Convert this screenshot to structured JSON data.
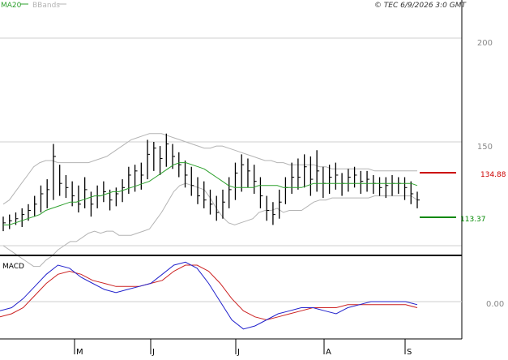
{
  "legend": {
    "ma_label": "MA20",
    "bbands_label": "BBands",
    "ma_color": "#2ca02c",
    "bbands_color": "#b4b4b4"
  },
  "copyright": "© TEC 6/9/2026 3:0 GMT",
  "price_axis": {
    "tick_labels": [
      "200",
      "150"
    ],
    "tick_values": [
      200,
      150
    ]
  },
  "levels": {
    "resistance": {
      "label": "134.88",
      "value": 134.88,
      "color": "#cc0000"
    },
    "support": {
      "label": "113.37",
      "value": 113.37,
      "color": "#008800"
    }
  },
  "macd": {
    "label": "MACD",
    "zero_label": "0.00",
    "macd_color": "#2222cc",
    "signal_color": "#cc2222"
  },
  "x_axis": {
    "months": [
      "M",
      "J",
      "J",
      "A",
      "S"
    ]
  },
  "chart_data": {
    "type": "line",
    "title": "",
    "ylim": [
      95,
      215
    ],
    "grid": true,
    "legend_placement": "top-left",
    "series": [
      {
        "name": "MA20",
        "values": [
          110,
          110,
          111,
          112,
          113,
          114,
          115,
          117,
          118,
          119,
          120,
          121,
          121,
          122,
          123,
          124,
          124,
          125,
          126,
          126,
          127,
          128,
          129,
          130,
          131,
          133,
          135,
          137,
          139,
          140,
          140,
          139,
          138,
          137,
          135,
          133,
          131,
          129,
          128,
          128,
          128,
          128,
          129,
          129,
          129,
          129,
          128,
          128,
          128,
          128,
          129,
          130,
          130,
          130,
          130,
          130,
          130,
          130,
          130,
          130,
          130,
          130,
          130,
          130,
          130,
          130,
          130,
          130,
          129
        ]
      },
      {
        "name": "BBands",
        "values": [
          120,
          122,
          126,
          130,
          134,
          138,
          140,
          141,
          141,
          140,
          140,
          140,
          140,
          140,
          140,
          141,
          142,
          143,
          145,
          147,
          149,
          151,
          152,
          153,
          154,
          154,
          154,
          153,
          152,
          151,
          150,
          149,
          148,
          147,
          147,
          148,
          148,
          147,
          146,
          145,
          144,
          143,
          142,
          141,
          141,
          140,
          140,
          139,
          139,
          139,
          139,
          139,
          138,
          138,
          137,
          137,
          137,
          137,
          137,
          137,
          137,
          136,
          136,
          136,
          136,
          136,
          136,
          136,
          136
        ]
      },
      {
        "name": "MACD",
        "values": [
          -1.5,
          -1.0,
          0.5,
          2.5,
          4.5,
          6.0,
          5.5,
          4.0,
          3.0,
          2.0,
          1.5,
          2.0,
          2.5,
          3.0,
          4.5,
          6.0,
          6.5,
          5.5,
          3.0,
          0.0,
          -3.0,
          -4.5,
          -4.0,
          -3.0,
          -2.0,
          -1.5,
          -1.0,
          -1.0,
          -1.5,
          -2.0,
          -1.0,
          -0.5,
          0.0,
          0.0,
          0.0,
          0.0,
          -0.5
        ]
      },
      {
        "name": "Signal",
        "values": [
          -2.5,
          -2.0,
          -1.0,
          1.0,
          3.0,
          4.5,
          5.0,
          4.5,
          3.5,
          3.0,
          2.5,
          2.5,
          2.5,
          3.0,
          3.5,
          5.0,
          6.0,
          6.0,
          5.0,
          3.0,
          0.5,
          -1.5,
          -2.5,
          -3.0,
          -2.5,
          -2.0,
          -1.5,
          -1.0,
          -1.0,
          -1.0,
          -0.5,
          -0.5,
          -0.5,
          -0.5,
          -0.5,
          -0.5,
          -1.0
        ]
      }
    ],
    "candles_high_low_close": [
      [
        107,
        114,
        111
      ],
      [
        108,
        115,
        112
      ],
      [
        110,
        116,
        113
      ],
      [
        109,
        118,
        115
      ],
      [
        112,
        120,
        117
      ],
      [
        114,
        124,
        120
      ],
      [
        116,
        129,
        125
      ],
      [
        118,
        132,
        127
      ],
      [
        122,
        149,
        143
      ],
      [
        124,
        139,
        130
      ],
      [
        123,
        134,
        128
      ],
      [
        119,
        131,
        124
      ],
      [
        116,
        129,
        120
      ],
      [
        118,
        133,
        127
      ],
      [
        114,
        126,
        120
      ],
      [
        118,
        129,
        124
      ],
      [
        121,
        131,
        126
      ],
      [
        117,
        127,
        122
      ],
      [
        119,
        128,
        125
      ],
      [
        121,
        132,
        128
      ],
      [
        125,
        138,
        134
      ],
      [
        126,
        139,
        136
      ],
      [
        127,
        140,
        134
      ],
      [
        132,
        151,
        144
      ],
      [
        136,
        150,
        147
      ],
      [
        134,
        148,
        142
      ],
      [
        138,
        154,
        149
      ],
      [
        137,
        149,
        143
      ],
      [
        133,
        145,
        139
      ],
      [
        128,
        141,
        134
      ],
      [
        124,
        138,
        129
      ],
      [
        120,
        133,
        124
      ],
      [
        118,
        131,
        122
      ],
      [
        115,
        127,
        120
      ],
      [
        112,
        124,
        116
      ],
      [
        113,
        127,
        121
      ],
      [
        118,
        133,
        127
      ],
      [
        122,
        140,
        135
      ],
      [
        126,
        144,
        139
      ],
      [
        128,
        142,
        136
      ],
      [
        125,
        139,
        131
      ],
      [
        118,
        133,
        124
      ],
      [
        112,
        124,
        117
      ],
      [
        110,
        121,
        115
      ],
      [
        113,
        127,
        121
      ],
      [
        120,
        133,
        128
      ],
      [
        125,
        140,
        133
      ],
      [
        127,
        142,
        133
      ],
      [
        128,
        144,
        138
      ],
      [
        124,
        143,
        132
      ],
      [
        126,
        146,
        136
      ],
      [
        123,
        138,
        130
      ],
      [
        125,
        139,
        133
      ],
      [
        127,
        140,
        134
      ],
      [
        124,
        135,
        130
      ],
      [
        126,
        137,
        133
      ],
      [
        128,
        138,
        134
      ],
      [
        125,
        136,
        131
      ],
      [
        126,
        136,
        132
      ],
      [
        125,
        134,
        130
      ],
      [
        124,
        133,
        128
      ],
      [
        123,
        133,
        129
      ],
      [
        124,
        134,
        130
      ],
      [
        125,
        133,
        130
      ],
      [
        122,
        133,
        128
      ],
      [
        120,
        131,
        125
      ],
      [
        118,
        126,
        122
      ]
    ]
  }
}
